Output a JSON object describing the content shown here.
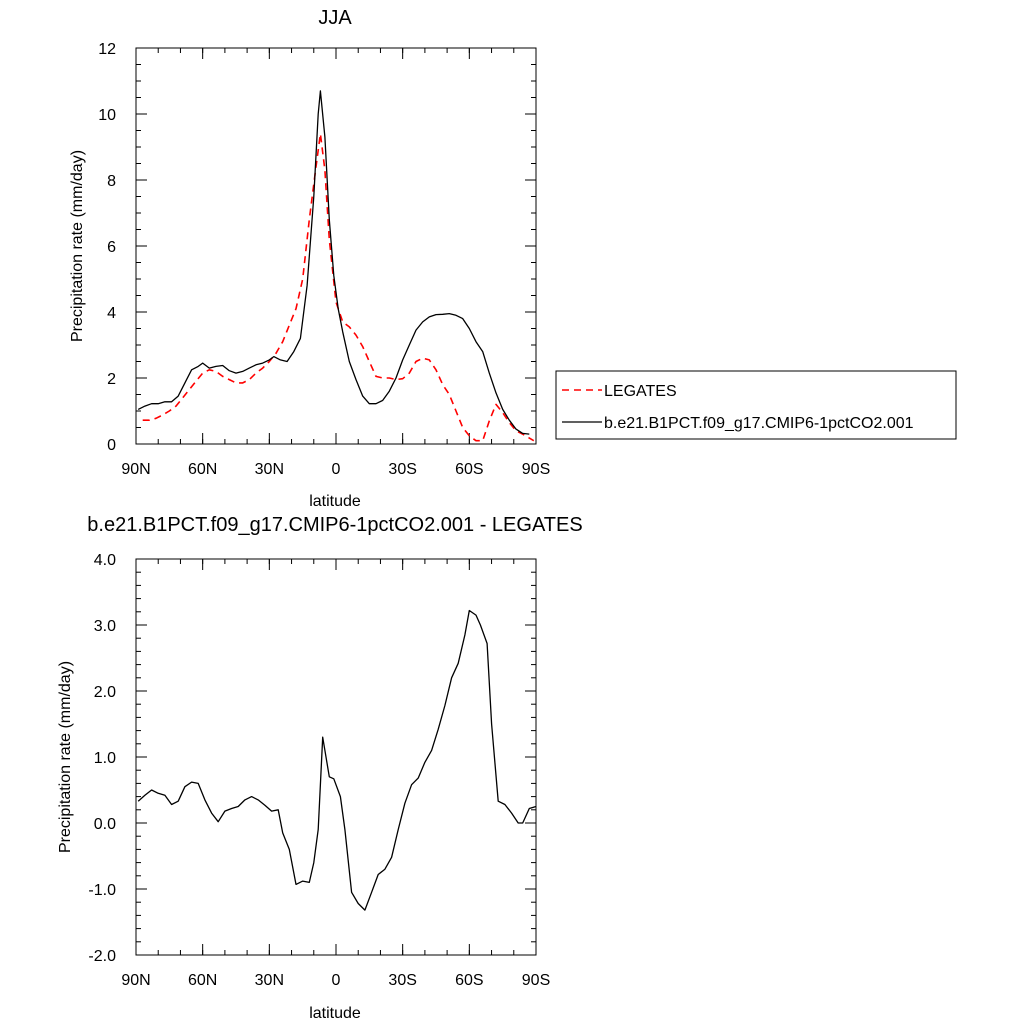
{
  "chart_data": [
    {
      "type": "line",
      "title": "JJA",
      "xlabel": "latitude",
      "ylabel": "Precipitation rate (mm/day)",
      "xlim": [
        90,
        -90
      ],
      "ylim": [
        0,
        12
      ],
      "x_ticks": [
        {
          "value": 90,
          "label": "90N"
        },
        {
          "value": 60,
          "label": "60N"
        },
        {
          "value": 30,
          "label": "30N"
        },
        {
          "value": 0,
          "label": "0"
        },
        {
          "value": -30,
          "label": "30S"
        },
        {
          "value": -60,
          "label": "60S"
        },
        {
          "value": -90,
          "label": "90S"
        }
      ],
      "y_ticks": [
        {
          "value": 0,
          "label": "0"
        },
        {
          "value": 2,
          "label": "2"
        },
        {
          "value": 4,
          "label": "4"
        },
        {
          "value": 6,
          "label": "6"
        },
        {
          "value": 8,
          "label": "8"
        },
        {
          "value": 10,
          "label": "10"
        },
        {
          "value": 12,
          "label": "12"
        }
      ],
      "legend_position": "right",
      "series": [
        {
          "name": "LEGATES",
          "color": "#ff0000",
          "dash": "dashed",
          "points": [
            [
              87,
              0.72
            ],
            [
              84,
              0.72
            ],
            [
              81,
              0.78
            ],
            [
              78,
              0.88
            ],
            [
              75,
              1.0
            ],
            [
              72,
              1.15
            ],
            [
              69,
              1.4
            ],
            [
              66,
              1.65
            ],
            [
              63,
              1.9
            ],
            [
              60,
              2.15
            ],
            [
              57,
              2.25
            ],
            [
              54,
              2.2
            ],
            [
              51,
              2.05
            ],
            [
              48,
              1.95
            ],
            [
              45,
              1.85
            ],
            [
              42,
              1.85
            ],
            [
              39,
              1.95
            ],
            [
              36,
              2.15
            ],
            [
              33,
              2.3
            ],
            [
              30,
              2.5
            ],
            [
              27,
              2.75
            ],
            [
              24,
              3.1
            ],
            [
              21,
              3.6
            ],
            [
              18,
              4.1
            ],
            [
              15,
              5.0
            ],
            [
              12,
              6.8
            ],
            [
              9,
              8.4
            ],
            [
              7,
              9.4
            ],
            [
              5,
              8.3
            ],
            [
              3,
              6.2
            ],
            [
              0,
              4.3
            ],
            [
              -3,
              3.7
            ],
            [
              -6,
              3.55
            ],
            [
              -9,
              3.3
            ],
            [
              -12,
              2.95
            ],
            [
              -15,
              2.5
            ],
            [
              -18,
              2.05
            ],
            [
              -21,
              2.0
            ],
            [
              -24,
              2.0
            ],
            [
              -27,
              1.95
            ],
            [
              -30,
              1.98
            ],
            [
              -33,
              2.15
            ],
            [
              -36,
              2.5
            ],
            [
              -39,
              2.6
            ],
            [
              -42,
              2.55
            ],
            [
              -45,
              2.25
            ],
            [
              -48,
              1.8
            ],
            [
              -51,
              1.5
            ],
            [
              -54,
              1.0
            ],
            [
              -57,
              0.5
            ],
            [
              -60,
              0.25
            ],
            [
              -63,
              0.1
            ],
            [
              -66,
              0.1
            ],
            [
              -69,
              0.7
            ],
            [
              -72,
              1.2
            ],
            [
              -75,
              0.95
            ],
            [
              -78,
              0.65
            ],
            [
              -81,
              0.4
            ],
            [
              -84,
              0.3
            ],
            [
              -87,
              0.18
            ],
            [
              -89,
              0.1
            ]
          ]
        },
        {
          "name": "b.e21.B1PCT.f09_g17.CMIP6-1pctCO2.001",
          "color": "#000000",
          "dash": "solid",
          "points": [
            [
              89,
              1.05
            ],
            [
              86,
              1.15
            ],
            [
              83,
              1.22
            ],
            [
              80,
              1.22
            ],
            [
              77,
              1.28
            ],
            [
              74,
              1.28
            ],
            [
              71,
              1.45
            ],
            [
              68,
              1.85
            ],
            [
              65,
              2.25
            ],
            [
              62,
              2.35
            ],
            [
              60,
              2.45
            ],
            [
              57,
              2.3
            ],
            [
              54,
              2.35
            ],
            [
              51,
              2.38
            ],
            [
              48,
              2.22
            ],
            [
              45,
              2.15
            ],
            [
              42,
              2.2
            ],
            [
              39,
              2.3
            ],
            [
              36,
              2.4
            ],
            [
              33,
              2.45
            ],
            [
              30,
              2.55
            ],
            [
              28,
              2.65
            ],
            [
              25,
              2.55
            ],
            [
              22,
              2.5
            ],
            [
              19,
              2.8
            ],
            [
              16,
              3.2
            ],
            [
              13,
              4.8
            ],
            [
              10,
              7.5
            ],
            [
              8,
              10.0
            ],
            [
              7,
              10.7
            ],
            [
              5,
              9.3
            ],
            [
              3,
              6.8
            ],
            [
              1,
              5.1
            ],
            [
              -1,
              4.1
            ],
            [
              -3,
              3.4
            ],
            [
              -6,
              2.5
            ],
            [
              -9,
              1.95
            ],
            [
              -12,
              1.45
            ],
            [
              -15,
              1.22
            ],
            [
              -18,
              1.22
            ],
            [
              -21,
              1.32
            ],
            [
              -24,
              1.6
            ],
            [
              -27,
              2.0
            ],
            [
              -30,
              2.55
            ],
            [
              -33,
              3.0
            ],
            [
              -36,
              3.45
            ],
            [
              -39,
              3.7
            ],
            [
              -42,
              3.85
            ],
            [
              -45,
              3.92
            ],
            [
              -48,
              3.93
            ],
            [
              -51,
              3.95
            ],
            [
              -54,
              3.9
            ],
            [
              -57,
              3.8
            ],
            [
              -60,
              3.5
            ],
            [
              -63,
              3.1
            ],
            [
              -66,
              2.8
            ],
            [
              -69,
              2.15
            ],
            [
              -72,
              1.55
            ],
            [
              -75,
              1.05
            ],
            [
              -78,
              0.72
            ],
            [
              -81,
              0.45
            ],
            [
              -84,
              0.32
            ],
            [
              -87,
              0.3
            ]
          ]
        }
      ]
    },
    {
      "type": "line",
      "title": "b.e21.B1PCT.f09_g17.CMIP6-1pctCO2.001 - LEGATES",
      "xlabel": "latitude",
      "ylabel": "Precipitation rate (mm/day)",
      "xlim": [
        90,
        -90
      ],
      "ylim": [
        -2.0,
        4.0
      ],
      "x_ticks": [
        {
          "value": 90,
          "label": "90N"
        },
        {
          "value": 60,
          "label": "60N"
        },
        {
          "value": 30,
          "label": "30N"
        },
        {
          "value": 0,
          "label": "0"
        },
        {
          "value": -30,
          "label": "30S"
        },
        {
          "value": -60,
          "label": "60S"
        },
        {
          "value": -90,
          "label": "90S"
        }
      ],
      "y_ticks": [
        {
          "value": -2,
          "label": "-2.0"
        },
        {
          "value": -1,
          "label": "-1.0"
        },
        {
          "value": 0,
          "label": "0.0"
        },
        {
          "value": 1,
          "label": "1.0"
        },
        {
          "value": 2,
          "label": "2.0"
        },
        {
          "value": 3,
          "label": "3.0"
        },
        {
          "value": 4,
          "label": "4.0"
        }
      ],
      "series": [
        {
          "color": "#000000",
          "dash": "solid",
          "points": [
            [
              89,
              0.33
            ],
            [
              86,
              0.42
            ],
            [
              83,
              0.5
            ],
            [
              80,
              0.45
            ],
            [
              77,
              0.42
            ],
            [
              74,
              0.28
            ],
            [
              71,
              0.33
            ],
            [
              68,
              0.55
            ],
            [
              65,
              0.62
            ],
            [
              62,
              0.6
            ],
            [
              59,
              0.35
            ],
            [
              56,
              0.15
            ],
            [
              53,
              0.02
            ],
            [
              50,
              0.18
            ],
            [
              47,
              0.22
            ],
            [
              44,
              0.25
            ],
            [
              41,
              0.35
            ],
            [
              38,
              0.4
            ],
            [
              35,
              0.35
            ],
            [
              32,
              0.27
            ],
            [
              29,
              0.18
            ],
            [
              26,
              0.2
            ],
            [
              24,
              -0.15
            ],
            [
              21,
              -0.4
            ],
            [
              18,
              -0.93
            ],
            [
              15,
              -0.88
            ],
            [
              12,
              -0.9
            ],
            [
              10,
              -0.6
            ],
            [
              8,
              -0.1
            ],
            [
              6,
              1.3
            ],
            [
              3,
              0.7
            ],
            [
              1,
              0.67
            ],
            [
              -2,
              0.4
            ],
            [
              -4,
              -0.1
            ],
            [
              -7,
              -1.05
            ],
            [
              -10,
              -1.22
            ],
            [
              -13,
              -1.32
            ],
            [
              -16,
              -1.05
            ],
            [
              -19,
              -0.78
            ],
            [
              -22,
              -0.7
            ],
            [
              -25,
              -0.52
            ],
            [
              -28,
              -0.1
            ],
            [
              -31,
              0.3
            ],
            [
              -34,
              0.58
            ],
            [
              -37,
              0.68
            ],
            [
              -40,
              0.92
            ],
            [
              -43,
              1.1
            ],
            [
              -46,
              1.42
            ],
            [
              -49,
              1.78
            ],
            [
              -52,
              2.2
            ],
            [
              -55,
              2.42
            ],
            [
              -58,
              2.85
            ],
            [
              -60,
              3.22
            ],
            [
              -63,
              3.15
            ],
            [
              -65,
              3.0
            ],
            [
              -68,
              2.72
            ],
            [
              -70,
              1.5
            ],
            [
              -73,
              0.33
            ],
            [
              -76,
              0.28
            ],
            [
              -79,
              0.15
            ],
            [
              -82,
              0.0
            ],
            [
              -84,
              0.0
            ],
            [
              -87,
              0.22
            ],
            [
              -90,
              0.25
            ]
          ]
        }
      ]
    }
  ]
}
